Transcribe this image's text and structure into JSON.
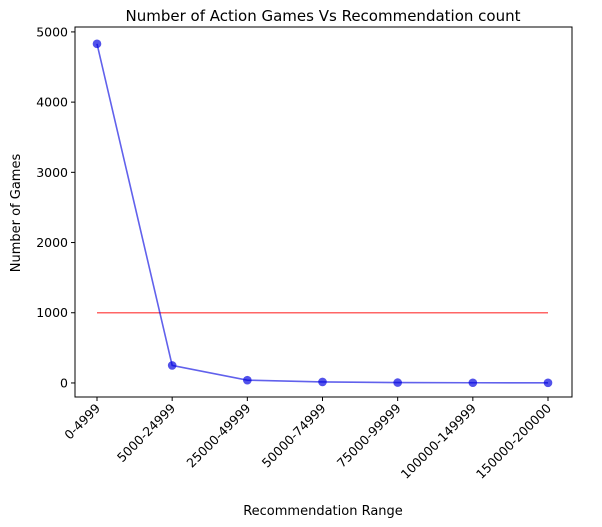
{
  "chart_data": {
    "type": "line",
    "title": "Number of Action Games  Vs Recommendation count",
    "xlabel": "Recommendation Range",
    "ylabel": "Number of Games",
    "categories": [
      "0-4999",
      "5000-24999",
      "25000-49999",
      "50000-74999",
      "75000-99999",
      "100000-149999",
      "150000-200000"
    ],
    "series": [
      {
        "values": [
          4830,
          250,
          40,
          15,
          5,
          3,
          2
        ],
        "color": "#0000e0",
        "marker": "circle"
      }
    ],
    "reference_line": {
      "value": 1000,
      "color": "#ff0000"
    },
    "yticks": [
      0,
      1000,
      2000,
      3000,
      4000,
      5000
    ],
    "ylim": [
      -200,
      5070
    ],
    "grid": false,
    "legend": "none"
  }
}
